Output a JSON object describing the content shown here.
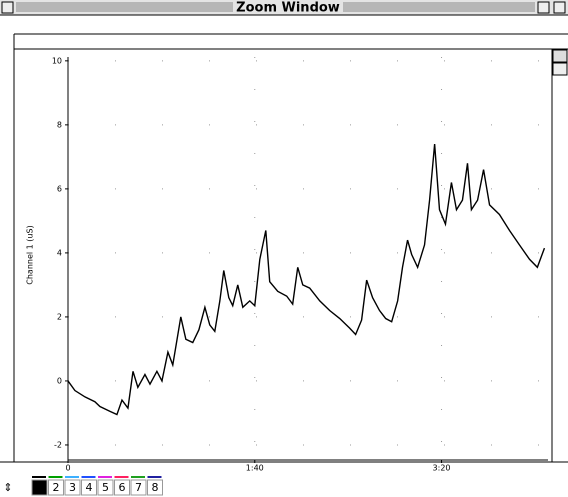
{
  "window": {
    "title": "Zoom Window"
  },
  "channels": [
    "1",
    "2",
    "3",
    "4",
    "5",
    "6",
    "7",
    "8"
  ],
  "channel_colors": [
    "#000000",
    "#00a000",
    "#3cb0ff",
    "#2050ff",
    "#e020e0",
    "#ff2060",
    "#20a020",
    "#2020a0"
  ],
  "chart_data": {
    "type": "line",
    "ylabel": "Channel 1 (uS)",
    "x": [
      0,
      3.7,
      9.1,
      14.4,
      17.1,
      22.5,
      26.2,
      28.9,
      32.1,
      34.8,
      37.4,
      41.2,
      43.9,
      47.6,
      50.3,
      53.5,
      56.1,
      60.4,
      63.1,
      66.8,
      70.1,
      73.3,
      75.9,
      78.6,
      81.3,
      83.4,
      86.1,
      88.2,
      90.9,
      93.6,
      97.3,
      100,
      102.7,
      105.9,
      108,
      112.3,
      117.1,
      120.3,
      123,
      125.7,
      129.4,
      134.8,
      140.1,
      145.5,
      150.8,
      154,
      157.2,
      159.9,
      163.1,
      166.8,
      170.1,
      173.3,
      176.5,
      179.1,
      181.8,
      184,
      187.2,
      190.9,
      193.6,
      196.3,
      198.9,
      202.1,
      205.3,
      208,
      211.2,
      213.9,
      216,
      219.3,
      222.5,
      225.7,
      231,
      236.4,
      241.7,
      247.1,
      251.3,
      255.1
    ],
    "values": [
      0,
      -0.3,
      -0.5,
      -0.65,
      -0.8,
      -0.95,
      -1.05,
      -0.6,
      -0.85,
      0.3,
      -0.2,
      0.2,
      -0.1,
      0.3,
      0,
      0.9,
      0.5,
      2.0,
      1.3,
      1.2,
      1.6,
      2.3,
      1.75,
      1.55,
      2.5,
      3.45,
      2.6,
      2.35,
      3.0,
      2.3,
      2.5,
      2.35,
      3.8,
      4.7,
      3.1,
      2.8,
      2.65,
      2.4,
      3.55,
      3.0,
      2.9,
      2.5,
      2.2,
      1.95,
      1.65,
      1.45,
      1.9,
      3.15,
      2.6,
      2.2,
      1.95,
      1.85,
      2.5,
      3.55,
      4.4,
      3.95,
      3.55,
      4.25,
      5.65,
      7.4,
      5.35,
      4.9,
      6.2,
      5.35,
      5.65,
      6.8,
      5.35,
      5.65,
      6.6,
      5.5,
      5.2,
      4.7,
      4.25,
      3.8,
      3.55,
      4.15
    ],
    "color": "#000000",
    "xlim": [
      0,
      257
    ],
    "xticks": [
      0,
      {
        "value": 100,
        "label": "1:40"
      },
      {
        "value": 200,
        "label": "3:20"
      }
    ],
    "ylim": [
      -2.47,
      10.12
    ],
    "yticks": [
      -2,
      0,
      2,
      4,
      6,
      8,
      10
    ],
    "grid": true
  }
}
